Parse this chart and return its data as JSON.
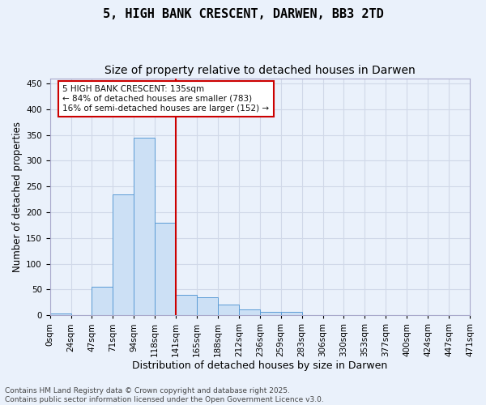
{
  "title": "5, HIGH BANK CRESCENT, DARWEN, BB3 2TD",
  "subtitle": "Size of property relative to detached houses in Darwen",
  "xlabel": "Distribution of detached houses by size in Darwen",
  "ylabel": "Number of detached properties",
  "bar_labels": [
    "0sqm",
    "24sqm",
    "47sqm",
    "71sqm",
    "94sqm",
    "118sqm",
    "141sqm",
    "165sqm",
    "188sqm",
    "212sqm",
    "236sqm",
    "259sqm",
    "283sqm",
    "306sqm",
    "330sqm",
    "353sqm",
    "377sqm",
    "400sqm",
    "424sqm",
    "447sqm",
    "471sqm"
  ],
  "bar_values": [
    3,
    0,
    55,
    235,
    345,
    180,
    40,
    35,
    21,
    12,
    6,
    7,
    0,
    0,
    0,
    0,
    0,
    0,
    0,
    0,
    2
  ],
  "bar_color": "#cce0f5",
  "bar_edge_color": "#5b9bd5",
  "grid_color": "#d0d8e8",
  "background_color": "#eaf1fb",
  "annotation_text": "5 HIGH BANK CRESCENT: 135sqm\n← 84% of detached houses are smaller (783)\n16% of semi-detached houses are larger (152) →",
  "annotation_box_color": "#ffffff",
  "annotation_box_edge": "#cc0000",
  "annotation_text_color": "#111111",
  "vline_color": "#cc0000",
  "ylim": [
    0,
    460
  ],
  "yticks": [
    0,
    50,
    100,
    150,
    200,
    250,
    300,
    350,
    400,
    450
  ],
  "footer_text": "Contains HM Land Registry data © Crown copyright and database right 2025.\nContains public sector information licensed under the Open Government Licence v3.0.",
  "title_fontsize": 11,
  "subtitle_fontsize": 10,
  "xlabel_fontsize": 9,
  "ylabel_fontsize": 8.5,
  "tick_fontsize": 7.5,
  "footer_fontsize": 6.5
}
